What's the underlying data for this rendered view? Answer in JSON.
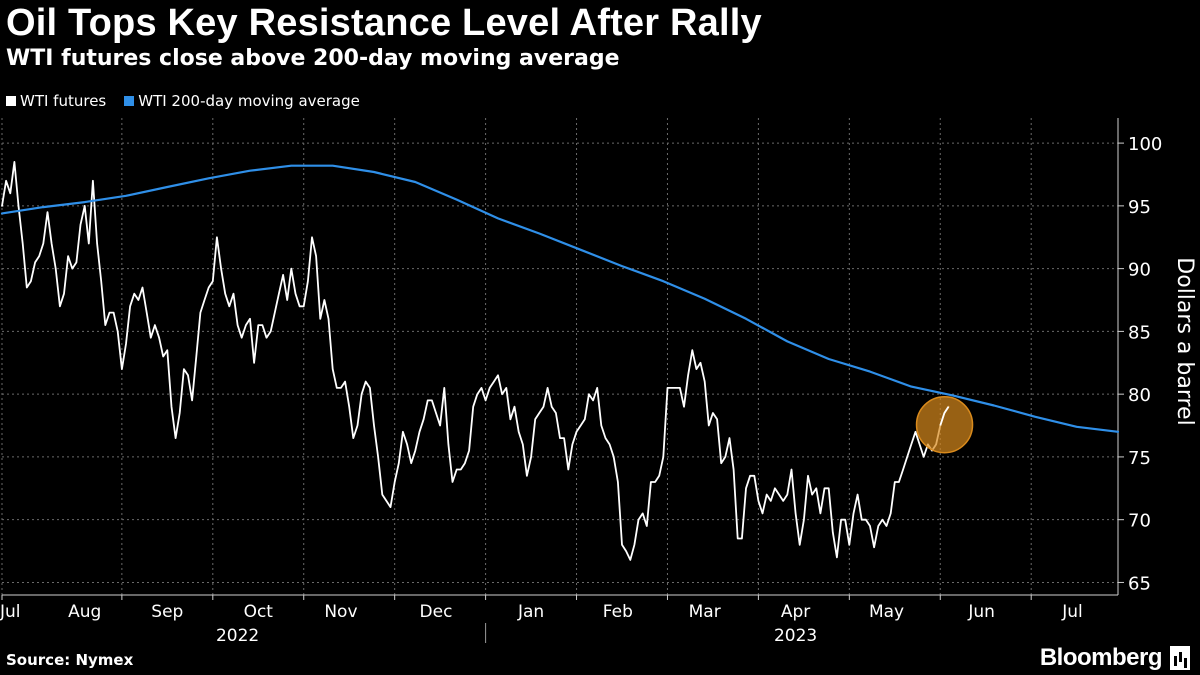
{
  "header": {
    "title": "Oil Tops Key Resistance Level After Rally",
    "subtitle": "WTI futures close above 200-day moving average"
  },
  "legend": [
    {
      "label": "WTI futures",
      "color": "#ffffff"
    },
    {
      "label": "WTI 200-day moving average",
      "color": "#2f8fe8"
    }
  ],
  "footer": {
    "source": "Source: Nymex",
    "brand": "Bloomberg"
  },
  "colors": {
    "background": "#000000",
    "futures": "#ffffff",
    "moving_average": "#2f8fe8",
    "highlight": "#d98a1c"
  },
  "chart_data": {
    "type": "line",
    "title": "Oil Tops Key Resistance Level After Rally",
    "subtitle": "WTI futures close above 200-day moving average",
    "ylabel": "Dollars a barrel",
    "xlabel": "",
    "ylim": [
      64,
      102
    ],
    "y_ticks": [
      65,
      70,
      75,
      80,
      85,
      90,
      95,
      100
    ],
    "x_domain": [
      0,
      270
    ],
    "month_ticks": [
      {
        "label": "Jul",
        "t": 2
      },
      {
        "label": "Aug",
        "t": 20
      },
      {
        "label": "Sep",
        "t": 40
      },
      {
        "label": "Oct",
        "t": 62
      },
      {
        "label": "Nov",
        "t": 82
      },
      {
        "label": "Dec",
        "t": 105
      },
      {
        "label": "Jan",
        "t": 128
      },
      {
        "label": "Feb",
        "t": 149
      },
      {
        "label": "Mar",
        "t": 170
      },
      {
        "label": "Apr",
        "t": 192
      },
      {
        "label": "May",
        "t": 214
      },
      {
        "label": "Jun",
        "t": 237
      },
      {
        "label": "Jul",
        "t": 259
      }
    ],
    "month_boundaries": [
      0,
      29,
      51,
      73,
      95,
      117,
      139,
      161,
      183,
      205,
      227,
      249
    ],
    "year_labels": [
      {
        "label": "2022",
        "t": 57
      },
      {
        "label": "2023",
        "t": 192
      }
    ],
    "year_divider_t": 117,
    "grid": true,
    "legend_position": "top-left",
    "annotation": "circle highlighting latest close above the 200-day moving average",
    "series": [
      {
        "name": "WTI futures",
        "color": "#ffffff",
        "points": [
          [
            0,
            95
          ],
          [
            1,
            97
          ],
          [
            2,
            96
          ],
          [
            3,
            98.5
          ],
          [
            4,
            95
          ],
          [
            5,
            92
          ],
          [
            6,
            88.5
          ],
          [
            7,
            89
          ],
          [
            8,
            90.5
          ],
          [
            9,
            91
          ],
          [
            10,
            92
          ],
          [
            11,
            94.5
          ],
          [
            12,
            92
          ],
          [
            13,
            90
          ],
          [
            14,
            87
          ],
          [
            15,
            88
          ],
          [
            16,
            91
          ],
          [
            17,
            90
          ],
          [
            18,
            90.5
          ],
          [
            19,
            93.5
          ],
          [
            20,
            95
          ],
          [
            21,
            92
          ],
          [
            22,
            97
          ],
          [
            23,
            92
          ],
          [
            24,
            89
          ],
          [
            25,
            85.5
          ],
          [
            26,
            86.5
          ],
          [
            27,
            86.5
          ],
          [
            28,
            85
          ],
          [
            29,
            82
          ],
          [
            30,
            84
          ],
          [
            31,
            87
          ],
          [
            32,
            88
          ],
          [
            33,
            87.5
          ],
          [
            34,
            88.5
          ],
          [
            35,
            86.5
          ],
          [
            36,
            84.5
          ],
          [
            37,
            85.5
          ],
          [
            38,
            84.5
          ],
          [
            39,
            83
          ],
          [
            40,
            83.5
          ],
          [
            41,
            79
          ],
          [
            42,
            76.5
          ],
          [
            43,
            78.5
          ],
          [
            44,
            82
          ],
          [
            45,
            81.5
          ],
          [
            46,
            79.5
          ],
          [
            47,
            83
          ],
          [
            48,
            86.5
          ],
          [
            49,
            87.5
          ],
          [
            50,
            88.5
          ],
          [
            51,
            89
          ],
          [
            52,
            92.5
          ],
          [
            53,
            90
          ],
          [
            54,
            88
          ],
          [
            55,
            87
          ],
          [
            56,
            88
          ],
          [
            57,
            85.5
          ],
          [
            58,
            84.5
          ],
          [
            59,
            85.5
          ],
          [
            60,
            86
          ],
          [
            61,
            82.5
          ],
          [
            62,
            85.5
          ],
          [
            63,
            85.5
          ],
          [
            64,
            84.5
          ],
          [
            65,
            85
          ],
          [
            66,
            86.5
          ],
          [
            67,
            88
          ],
          [
            68,
            89.5
          ],
          [
            69,
            87.5
          ],
          [
            70,
            90
          ],
          [
            71,
            88
          ],
          [
            72,
            87
          ],
          [
            73,
            87
          ],
          [
            74,
            89
          ],
          [
            75,
            92.5
          ],
          [
            76,
            91
          ],
          [
            77,
            86
          ],
          [
            78,
            87.5
          ],
          [
            79,
            86
          ],
          [
            80,
            82
          ],
          [
            81,
            80.5
          ],
          [
            82,
            80.5
          ],
          [
            83,
            81
          ],
          [
            84,
            79
          ],
          [
            85,
            76.5
          ],
          [
            86,
            77.5
          ],
          [
            87,
            80
          ],
          [
            88,
            81
          ],
          [
            89,
            80.5
          ],
          [
            90,
            77.5
          ],
          [
            91,
            75
          ],
          [
            92,
            72
          ],
          [
            93,
            71.5
          ],
          [
            94,
            71
          ],
          [
            95,
            73
          ],
          [
            96,
            74.5
          ],
          [
            97,
            77
          ],
          [
            98,
            76
          ],
          [
            99,
            74.5
          ],
          [
            100,
            75.5
          ],
          [
            101,
            77
          ],
          [
            102,
            78
          ],
          [
            103,
            79.5
          ],
          [
            104,
            79.5
          ],
          [
            105,
            78.5
          ],
          [
            106,
            77.5
          ],
          [
            107,
            80.5
          ],
          [
            108,
            76
          ],
          [
            109,
            73
          ],
          [
            110,
            74
          ],
          [
            111,
            74
          ],
          [
            112,
            74.5
          ],
          [
            113,
            75.5
          ],
          [
            114,
            79
          ],
          [
            115,
            80
          ],
          [
            116,
            80.5
          ],
          [
            117,
            79.5
          ],
          [
            118,
            80.5
          ],
          [
            119,
            81
          ],
          [
            120,
            81.5
          ],
          [
            121,
            80
          ],
          [
            122,
            80.5
          ],
          [
            123,
            78
          ],
          [
            124,
            79
          ],
          [
            125,
            77
          ],
          [
            126,
            76
          ],
          [
            127,
            73.5
          ],
          [
            128,
            75
          ],
          [
            129,
            78
          ],
          [
            130,
            78.5
          ],
          [
            131,
            79
          ],
          [
            132,
            80.5
          ],
          [
            133,
            79
          ],
          [
            134,
            78.5
          ],
          [
            135,
            76.5
          ],
          [
            136,
            76.5
          ],
          [
            137,
            74
          ],
          [
            138,
            76
          ],
          [
            139,
            77
          ],
          [
            140,
            77.5
          ],
          [
            141,
            78
          ],
          [
            142,
            80
          ],
          [
            143,
            79.5
          ],
          [
            144,
            80.5
          ],
          [
            145,
            77.5
          ],
          [
            146,
            76.5
          ],
          [
            147,
            76
          ],
          [
            148,
            75
          ],
          [
            149,
            73
          ],
          [
            150,
            68
          ],
          [
            151,
            67.5
          ],
          [
            152,
            66.8
          ],
          [
            153,
            68
          ],
          [
            154,
            70
          ],
          [
            155,
            70.5
          ],
          [
            156,
            69.5
          ],
          [
            157,
            73
          ],
          [
            158,
            73
          ],
          [
            159,
            73.5
          ],
          [
            160,
            75
          ],
          [
            161,
            80.5
          ],
          [
            162,
            80.5
          ],
          [
            163,
            80.5
          ],
          [
            164,
            80.5
          ],
          [
            165,
            79
          ],
          [
            166,
            81.5
          ],
          [
            167,
            83.5
          ],
          [
            168,
            82
          ],
          [
            169,
            82.5
          ],
          [
            170,
            81
          ],
          [
            171,
            77.5
          ],
          [
            172,
            78.5
          ],
          [
            173,
            78
          ],
          [
            174,
            74.5
          ],
          [
            175,
            75
          ],
          [
            176,
            76.5
          ],
          [
            177,
            74
          ],
          [
            178,
            68.5
          ],
          [
            179,
            68.5
          ],
          [
            180,
            72.5
          ],
          [
            181,
            73.5
          ],
          [
            182,
            73.5
          ],
          [
            183,
            71.5
          ],
          [
            184,
            70.5
          ],
          [
            185,
            72
          ],
          [
            186,
            71.5
          ],
          [
            187,
            72.5
          ],
          [
            188,
            72
          ],
          [
            189,
            71.5
          ],
          [
            190,
            72
          ],
          [
            191,
            74
          ],
          [
            192,
            70.5
          ],
          [
            193,
            68
          ],
          [
            194,
            70
          ],
          [
            195,
            73.5
          ],
          [
            196,
            72
          ],
          [
            197,
            72.5
          ],
          [
            198,
            70.5
          ],
          [
            199,
            72.5
          ],
          [
            200,
            72.5
          ],
          [
            201,
            69
          ],
          [
            202,
            67
          ],
          [
            203,
            70
          ],
          [
            204,
            70
          ],
          [
            205,
            68
          ],
          [
            206,
            70.5
          ],
          [
            207,
            72
          ],
          [
            208,
            70
          ],
          [
            209,
            70
          ],
          [
            210,
            69.5
          ],
          [
            211,
            67.8
          ],
          [
            212,
            69.5
          ],
          [
            213,
            70
          ],
          [
            214,
            69.5
          ],
          [
            215,
            70.5
          ],
          [
            216,
            73
          ],
          [
            217,
            73
          ],
          [
            218,
            74
          ],
          [
            219,
            75
          ],
          [
            220,
            76
          ],
          [
            221,
            77
          ],
          [
            222,
            76
          ],
          [
            223,
            75
          ],
          [
            224,
            76
          ],
          [
            225,
            75.5
          ],
          [
            226,
            76
          ],
          [
            227,
            77.5
          ],
          [
            228,
            78.5
          ],
          [
            229,
            79
          ]
        ]
      },
      {
        "name": "WTI 200-day moving average",
        "color": "#2f8fe8",
        "points": [
          [
            0,
            94.4
          ],
          [
            10,
            94.9
          ],
          [
            20,
            95.3
          ],
          [
            30,
            95.8
          ],
          [
            40,
            96.5
          ],
          [
            50,
            97.2
          ],
          [
            60,
            97.8
          ],
          [
            70,
            98.2
          ],
          [
            80,
            98.2
          ],
          [
            90,
            97.7
          ],
          [
            100,
            96.9
          ],
          [
            110,
            95.5
          ],
          [
            120,
            94.0
          ],
          [
            130,
            92.8
          ],
          [
            140,
            91.5
          ],
          [
            150,
            90.2
          ],
          [
            160,
            89.0
          ],
          [
            170,
            87.6
          ],
          [
            180,
            86.0
          ],
          [
            190,
            84.2
          ],
          [
            200,
            82.8
          ],
          [
            210,
            81.8
          ],
          [
            220,
            80.6
          ],
          [
            230,
            79.9
          ],
          [
            240,
            79.1
          ],
          [
            250,
            78.2
          ],
          [
            260,
            77.4
          ],
          [
            270,
            77.0
          ]
        ]
      }
    ]
  }
}
